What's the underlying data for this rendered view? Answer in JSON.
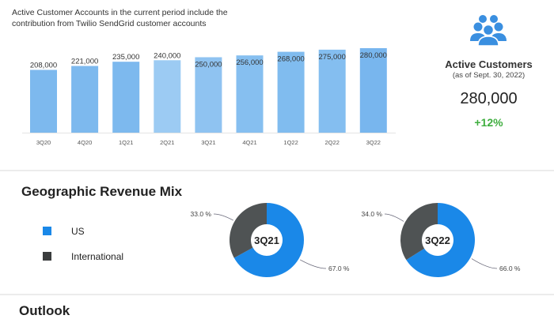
{
  "note": "Active Customer Accounts in the current period include the contribution from Twilio SendGrid customer accounts",
  "side": {
    "icon": "users-group-icon",
    "title": "Active Customers",
    "subtitle": "(as of Sept. 30, 2022)",
    "value": "280,000",
    "change": "+12%",
    "change_color": "#3fae3f",
    "icon_color": "#3a8fe0"
  },
  "geo_title": "Geographic Revenue Mix",
  "outlook_title": "Outlook",
  "legend": [
    {
      "label": "US",
      "color": "#1a88e8"
    },
    {
      "label": "International",
      "color": "#3a3c3d"
    }
  ],
  "chart_data": [
    {
      "type": "bar",
      "categories": [
        "3Q20",
        "4Q20",
        "1Q21",
        "2Q21",
        "3Q21",
        "4Q21",
        "1Q22",
        "2Q22",
        "3Q22"
      ],
      "values": [
        208000,
        221000,
        235000,
        240000,
        250000,
        256000,
        268000,
        275000,
        280000
      ],
      "labels": [
        "208,000",
        "221,000",
        "235,000",
        "240,000",
        "250,000",
        "256,000",
        "268,000",
        "275,000",
        "280,000"
      ],
      "colors": [
        "#7db9ee",
        "#7db9ee",
        "#7db9ee",
        "#9ccbf3",
        "#8fc3f1",
        "#86bff0",
        "#80bcef",
        "#84bef0",
        "#78b6ee"
      ],
      "ylim": [
        0,
        280000
      ],
      "grid": false
    },
    {
      "type": "pie",
      "center_label": "3Q21",
      "slices": [
        {
          "name": "US",
          "value": 67.0,
          "label": "67.0 %",
          "color": "#1a88e8"
        },
        {
          "name": "International",
          "value": 33.0,
          "label": "33.0 %",
          "color": "#4f5354"
        }
      ]
    },
    {
      "type": "pie",
      "center_label": "3Q22",
      "slices": [
        {
          "name": "US",
          "value": 66.0,
          "label": "66.0 %",
          "color": "#1a88e8"
        },
        {
          "name": "International",
          "value": 34.0,
          "label": "34.0 %",
          "color": "#4f5354"
        }
      ]
    }
  ]
}
